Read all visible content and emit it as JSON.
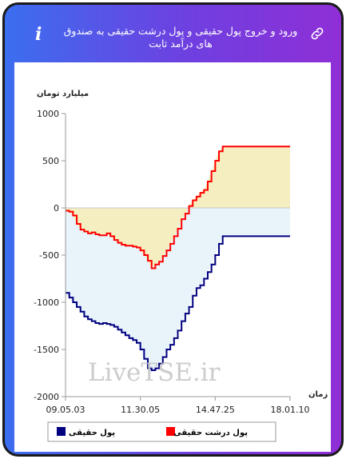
{
  "header": {
    "title": "ورود و خروج پول حقیقی و پول درشت حقیقی به صندوق های درآمد ثابت",
    "link_icon": "link-icon",
    "info_icon": "info-icon",
    "info_glyph": "i",
    "gradient": [
      "#3b6ef0",
      "#8f2fd6"
    ]
  },
  "watermark": "LiveTSE.ir",
  "chart_data": {
    "type": "area",
    "ylabel": "میلیارد تومان",
    "xlabel": "زمان",
    "ylim": [
      -2000,
      1000
    ],
    "yticks": [
      1000,
      500,
      0,
      -500,
      -1000,
      -1500,
      -2000
    ],
    "xticks": [
      "09.05.03",
      "11.30.05",
      "14.47.25",
      "18.01.10"
    ],
    "grid": false,
    "legend_position": "bottom",
    "series": [
      {
        "name": "پول حقیقی",
        "color": "#000080",
        "fill": "#e8f3fa",
        "values": [
          -900,
          -950,
          -1000,
          -1050,
          -1100,
          -1150,
          -1180,
          -1200,
          -1220,
          -1230,
          -1220,
          -1230,
          -1240,
          -1260,
          -1290,
          -1320,
          -1350,
          -1380,
          -1400,
          -1430,
          -1500,
          -1600,
          -1700,
          -1720,
          -1700,
          -1650,
          -1580,
          -1500,
          -1450,
          -1380,
          -1300,
          -1200,
          -1120,
          -1050,
          -930,
          -850,
          -820,
          -750,
          -680,
          -600,
          -500,
          -380,
          -300,
          -300,
          -300,
          -300,
          -300,
          -300,
          -300,
          -300,
          -300,
          -300,
          -300,
          -300,
          -300,
          -300,
          -300,
          -300,
          -300,
          -300,
          -300
        ]
      },
      {
        "name": "پول درشت حقیقی",
        "color": "#ff0000",
        "fill": "#f5eec0",
        "values": [
          -30,
          -40,
          -80,
          -170,
          -230,
          -250,
          -270,
          -260,
          -280,
          -290,
          -290,
          -270,
          -300,
          -340,
          -370,
          -390,
          -400,
          -400,
          -410,
          -420,
          -450,
          -500,
          -560,
          -640,
          -600,
          -570,
          -510,
          -450,
          -380,
          -300,
          -220,
          -120,
          -60,
          20,
          80,
          120,
          160,
          190,
          280,
          390,
          500,
          600,
          650,
          650,
          650,
          650,
          650,
          650,
          650,
          650,
          650,
          650,
          650,
          650,
          650,
          650,
          650,
          650,
          650,
          650,
          650
        ]
      }
    ]
  }
}
